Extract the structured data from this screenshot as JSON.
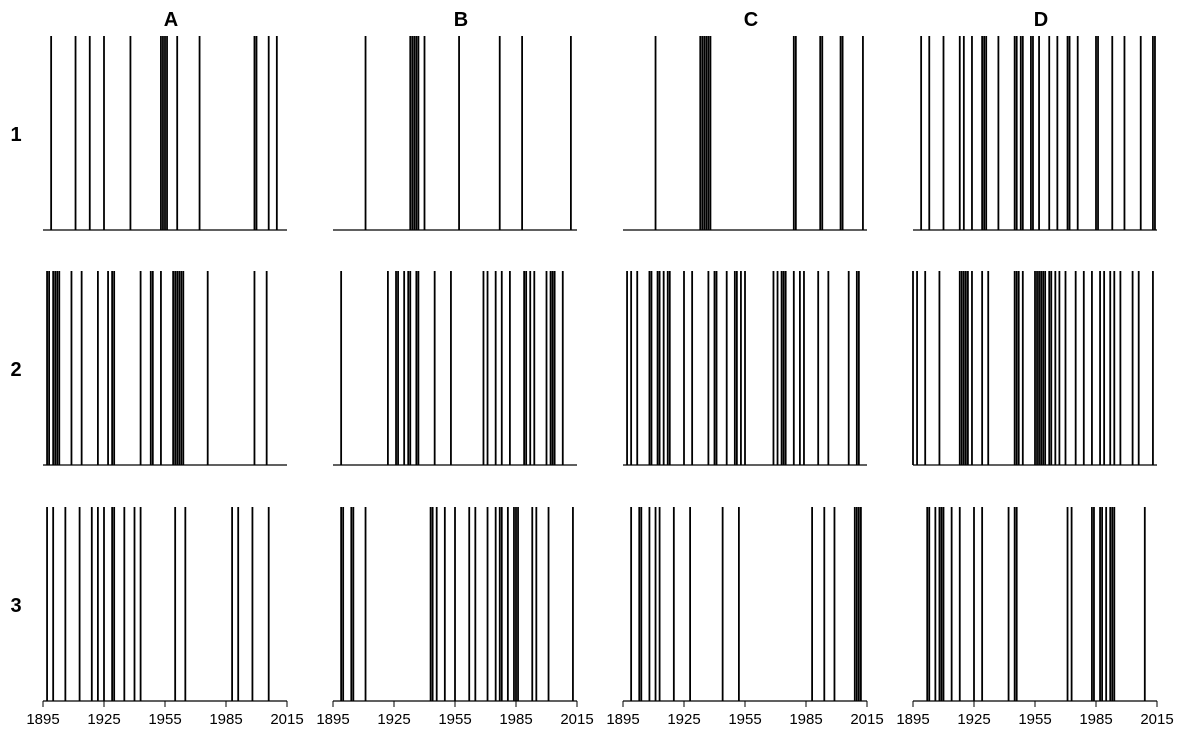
{
  "chart_data": {
    "type": "event",
    "x_range": [
      1895,
      2015
    ],
    "x_ticks": [
      1895,
      1925,
      1955,
      1985,
      2015
    ],
    "x_tick_labels": [
      "1895",
      "1925",
      "1955",
      "1985",
      "2015"
    ],
    "columns": [
      "A",
      "B",
      "C",
      "D"
    ],
    "rows": [
      "1",
      "2",
      "3"
    ],
    "line_color": "#000000",
    "background": "#ffffff",
    "panels": [
      [
        {
          "events": [
            1899,
            1911,
            1918,
            1925,
            1938,
            1953,
            1954,
            1955,
            1956,
            1961,
            1972,
            1999,
            2000,
            2006,
            2010
          ]
        },
        {
          "events": [
            1911,
            1933,
            1934,
            1935,
            1936,
            1937,
            1940,
            1957,
            1977,
            1988,
            2012
          ]
        },
        {
          "events": [
            1911,
            1933,
            1934,
            1935,
            1936,
            1937,
            1938,
            1979,
            1980,
            1992,
            1993,
            2002,
            2003,
            2013
          ]
        },
        {
          "events": [
            1899,
            1903,
            1910,
            1918,
            1920,
            1924,
            1929,
            1930,
            1931,
            1937,
            1945,
            1946,
            1948,
            1949,
            1953,
            1954,
            1957,
            1962,
            1966,
            1971,
            1972,
            1976,
            1985,
            1986,
            1993,
            1999,
            2007,
            2013,
            2014
          ]
        }
      ],
      [
        {
          "events": [
            1897,
            1898,
            1900,
            1901,
            1902,
            1903,
            1909,
            1914,
            1922,
            1927,
            1929,
            1930,
            1943,
            1948,
            1949,
            1953,
            1959,
            1960,
            1961,
            1962,
            1963,
            1964,
            1976,
            1999,
            2005
          ]
        },
        {
          "events": [
            1899,
            1922,
            1926,
            1927,
            1930,
            1932,
            1933,
            1936,
            1937,
            1945,
            1953,
            1969,
            1971,
            1975,
            1978,
            1982,
            1989,
            1990,
            1992,
            1994,
            2000,
            2002,
            2003,
            2004,
            2008
          ]
        },
        {
          "events": [
            1897,
            1899,
            1902,
            1908,
            1909,
            1912,
            1913,
            1915,
            1917,
            1918,
            1925,
            1929,
            1937,
            1940,
            1941,
            1946,
            1950,
            1951,
            1953,
            1955,
            1969,
            1971,
            1973,
            1974,
            1975,
            1979,
            1982,
            1984,
            1991,
            1996,
            2006,
            2010,
            2011
          ]
        },
        {
          "events": [
            1895,
            1897,
            1901,
            1908,
            1918,
            1919,
            1920,
            1921,
            1922,
            1924,
            1929,
            1932,
            1945,
            1946,
            1947,
            1949,
            1955,
            1956,
            1957,
            1958,
            1959,
            1960,
            1962,
            1963,
            1965,
            1967,
            1970,
            1975,
            1979,
            1983,
            1987,
            1989,
            1992,
            1994,
            1997,
            2003,
            2006,
            2013
          ]
        }
      ],
      [
        {
          "events": [
            1897,
            1900,
            1906,
            1913,
            1919,
            1922,
            1925,
            1929,
            1930,
            1935,
            1940,
            1943,
            1960,
            1965,
            1988,
            1991,
            1998,
            2006
          ]
        },
        {
          "events": [
            1899,
            1900,
            1904,
            1905,
            1911,
            1943,
            1944,
            1946,
            1950,
            1955,
            1962,
            1965,
            1971,
            1975,
            1977,
            1978,
            1981,
            1984,
            1985,
            1986,
            1993,
            1995,
            2001,
            2013
          ]
        },
        {
          "events": [
            1899,
            1903,
            1904,
            1908,
            1911,
            1913,
            1920,
            1928,
            1944,
            1952,
            1988,
            1994,
            1999,
            2009,
            2010,
            2011,
            2012
          ]
        },
        {
          "events": [
            1902,
            1903,
            1906,
            1908,
            1909,
            1910,
            1914,
            1918,
            1925,
            1929,
            1942,
            1945,
            1946,
            1971,
            1973,
            1983,
            1984,
            1987,
            1988,
            1990,
            1992,
            1993,
            1994,
            2009
          ]
        }
      ]
    ]
  }
}
